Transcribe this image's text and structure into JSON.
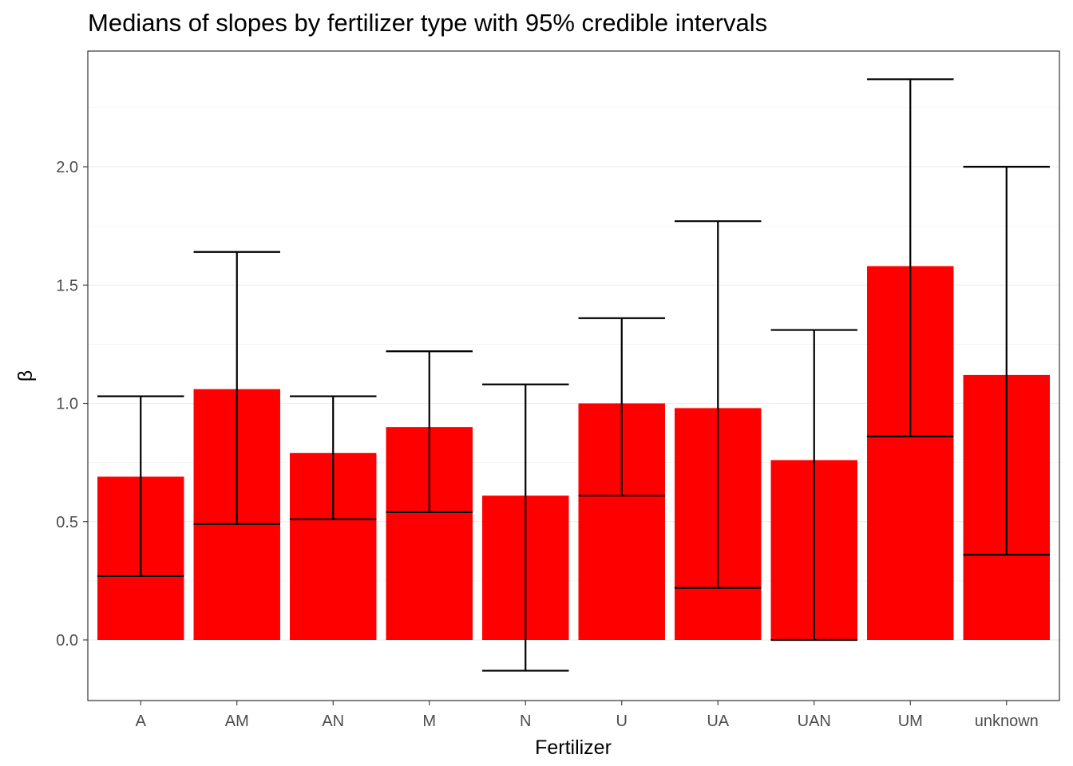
{
  "chart_data": {
    "type": "bar",
    "title": "Medians of slopes by fertilizer type with 95% credible intervals",
    "xlabel": "Fertilizer",
    "ylabel": "β",
    "categories": [
      "A",
      "AM",
      "AN",
      "M",
      "N",
      "U",
      "UA",
      "UAN",
      "UM",
      "unknown"
    ],
    "values": [
      0.69,
      1.06,
      0.79,
      0.9,
      0.61,
      1.0,
      0.98,
      0.76,
      1.58,
      1.12
    ],
    "error_lower": [
      0.27,
      0.49,
      0.51,
      0.54,
      -0.13,
      0.61,
      0.22,
      0.0,
      0.86,
      0.36
    ],
    "error_upper": [
      1.03,
      1.64,
      1.03,
      1.22,
      1.08,
      1.36,
      1.77,
      1.31,
      2.37,
      2.0
    ],
    "yticks": [
      0.0,
      0.5,
      1.0,
      1.5,
      2.0
    ],
    "ytick_labels": [
      "0.0",
      "0.5",
      "1.0",
      "1.5",
      "2.0"
    ],
    "ylim": [
      -0.25,
      2.5
    ],
    "grid": true,
    "legend": "none",
    "colors": {
      "bar": "#FE0000",
      "errorbar": "#000000",
      "grid": "#EBEBEB",
      "panel_border": "#333333",
      "tick_text": "#4D4D4D"
    }
  }
}
